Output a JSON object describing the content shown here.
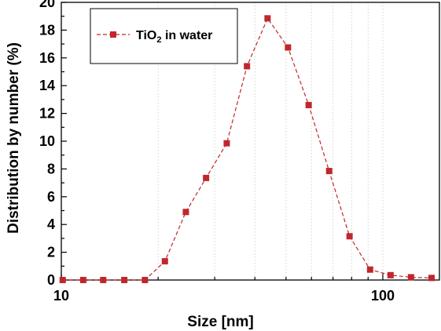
{
  "chart_data": {
    "type": "line",
    "xlabel": "Size [nm]",
    "ylabel": "Distribution by number (%)",
    "x_scale": "log",
    "xlim": [
      10,
      150
    ],
    "ylim": [
      0,
      20
    ],
    "x_ticks": [
      10,
      100
    ],
    "x_tick_labels": [
      "10",
      "100"
    ],
    "y_ticks": [
      0,
      2,
      4,
      6,
      8,
      10,
      12,
      14,
      16,
      18,
      20
    ],
    "y_tick_labels": [
      "0",
      "2",
      "4",
      "6",
      "8",
      "10",
      "12",
      "14",
      "16",
      "18",
      "20"
    ],
    "grid": "vertical dotted at minor x decades",
    "legend_position": "top-left",
    "series": [
      {
        "name_main": "TiO",
        "name_sub": "2",
        "name_rest": " in water",
        "marker": "square",
        "line_style": "dashed",
        "color": "#c0272d",
        "x": [
          10.1,
          11.7,
          13.5,
          15.7,
          18.2,
          21.0,
          24.4,
          28.2,
          32.7,
          37.8,
          43.8,
          50.7,
          58.8,
          68.1,
          78.8,
          91.3,
          105.7,
          122.4,
          141.8
        ],
        "y": [
          0,
          0,
          0,
          0,
          0,
          1.35,
          4.9,
          7.35,
          9.85,
          15.4,
          18.85,
          16.75,
          12.6,
          7.85,
          3.15,
          0.75,
          0.35,
          0.2,
          0.15
        ]
      }
    ]
  }
}
